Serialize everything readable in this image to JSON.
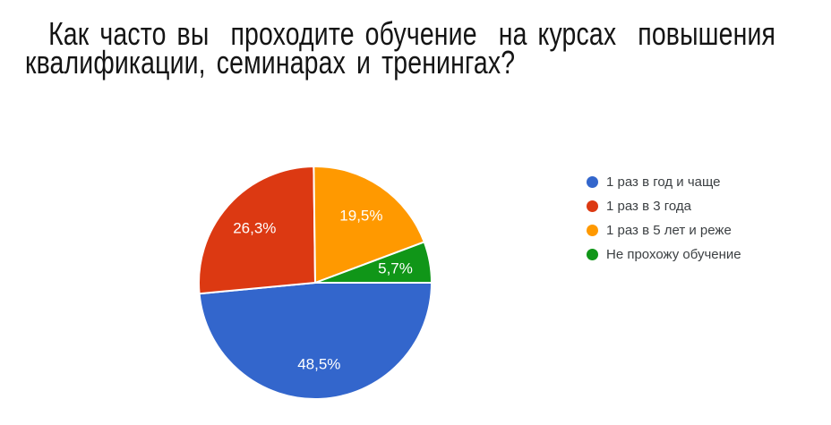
{
  "title": "Как часто вы  проходите обучение  на курсах  повышения\nквалификации, семинарах и тренингах?",
  "chart_data": {
    "type": "pie",
    "title": "Как часто вы проходите обучение на курсах повышения квалификации, семинарах и тренингах?",
    "legend_position": "right",
    "start_angle_deg": 90,
    "clockwise": true,
    "label_color": "#ffffff",
    "legend_text_color": "#3c4043",
    "background_color": "#ffffff",
    "slices": [
      {
        "label": "1 раз в год и чаще",
        "value": 48.5,
        "display": "48,5%",
        "color": "#3366CC"
      },
      {
        "label": "1 раз в 3 года",
        "value": 26.3,
        "display": "26,3%",
        "color": "#DC3912"
      },
      {
        "label": "1 раз в 5 лет и реже",
        "value": 19.5,
        "display": "19,5%",
        "color": "#FF9900"
      },
      {
        "label": "Не прохожу обучение",
        "value": 5.7,
        "display": "5,7%",
        "color": "#109618"
      }
    ]
  }
}
